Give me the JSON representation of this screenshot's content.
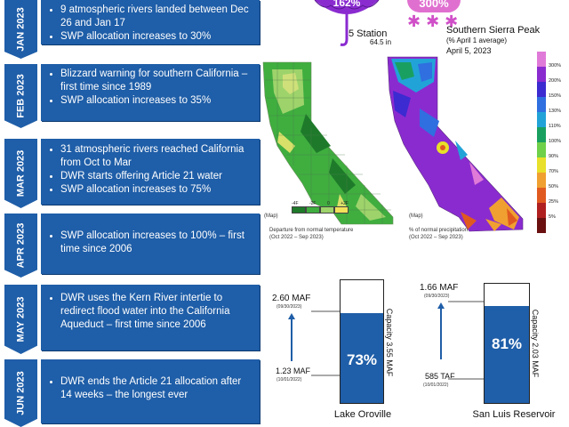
{
  "timeline": [
    {
      "month": "JAN",
      "year": "2023",
      "bullets": [
        "9 atmospheric rivers landed between Dec 26 and Jan 17",
        "SWP allocation increases to 30%"
      ]
    },
    {
      "month": "FEB",
      "year": "2023",
      "bullets": [
        "Blizzard warning for southern California – first time since 1989",
        "SWP allocation increases to 35%"
      ]
    },
    {
      "month": "MAR",
      "year": "2023",
      "bullets": [
        "31 atmospheric rivers reached California from Oct to Mar",
        "DWR starts offering Article 21 water",
        "SWP allocation increases to 75%"
      ]
    },
    {
      "month": "APR",
      "year": "2023",
      "bullets": [
        "SWP allocation increases to 100% – first time since 2006"
      ]
    },
    {
      "month": "MAY",
      "year": "2023",
      "bullets": [
        "DWR uses the Kern River intertie to redirect flood water into the California Aqueduct – first time since 2006"
      ]
    },
    {
      "month": "JUN",
      "year": "2023",
      "bullets": [
        "DWR ends the Article 21 allocation after 14 weeks – the longest ever"
      ]
    }
  ],
  "precip": {
    "percent": "162%",
    "station": "5 Station",
    "inches": "64.5 in"
  },
  "snow": {
    "percent": "300%",
    "title": "Southern Sierra Peak",
    "subtitle": "(% April 1 average)",
    "date": "April 5, 2023"
  },
  "snow_legend": [
    "300%",
    "200%",
    "150%",
    "130%",
    "110%",
    "100%",
    "90%",
    "70%",
    "50%",
    "25%",
    "5%"
  ],
  "snow_legend_colors": [
    "#e07ad8",
    "#8a2bd0",
    "#3c2bd0",
    "#2f6fe0",
    "#22a3d8",
    "#19a060",
    "#6fd04a",
    "#e8e02a",
    "#f0a030",
    "#e05a20",
    "#b02020",
    "#6a1010"
  ],
  "temp_map": {
    "map_label": "(Map)",
    "caption": "Departure from normal temperature",
    "period": "(Oct 2022 – Sep 2023)",
    "scale": [
      "-4F",
      "-2F",
      "0",
      "+2F"
    ],
    "scale_colors": [
      "#1e7a2a",
      "#3fae3f",
      "#9ed36b",
      "#f2e25a"
    ]
  },
  "precip_map": {
    "map_label": "(Map)",
    "caption": "% of normal precipitation",
    "period": "(Oct 2022 – Sep 2023)"
  },
  "colors": {
    "accent": "#1f5ea8",
    "reservoir_fill": "#1f5ea8"
  },
  "reservoirs": [
    {
      "name": "Lake Oroville",
      "percent": "73%",
      "fill_fraction": 0.73,
      "capacity": "Capacity 3.55 MAF",
      "high": "2.60 MAF",
      "high_date": "(09/30/2023)",
      "low": "1.23 MAF",
      "low_date": "(10/01/2022)"
    },
    {
      "name": "San Luis Reservoir",
      "percent": "81%",
      "fill_fraction": 0.81,
      "capacity": "Capacity 2.03 MAF",
      "high": "1.66 MAF",
      "high_date": "(09/30/2023)",
      "low": "585 TAF",
      "low_date": "(10/01/2022)"
    }
  ]
}
